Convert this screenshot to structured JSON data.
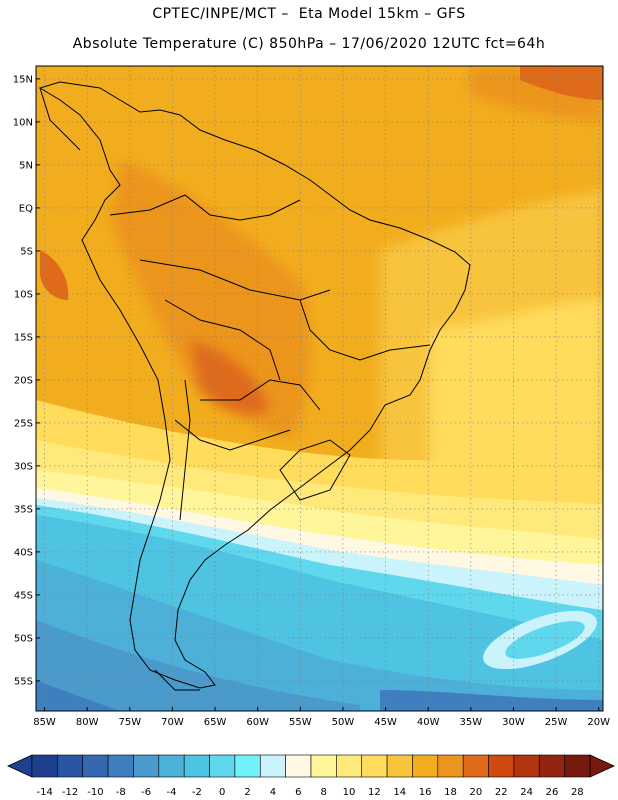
{
  "header": {
    "title_line1": "CPTEC/INPE/MCT –  Eta Model 15km – GFS",
    "title_line2": "Absolute Temperature (C) 850hPa – 17/06/2020 12UTC fct=64h"
  },
  "map": {
    "lat_labels": [
      "15N",
      "10N",
      "5N",
      "EQ",
      "5S",
      "10S",
      "15S",
      "20S",
      "25S",
      "30S",
      "35S",
      "40S",
      "45S",
      "50S",
      "55S"
    ],
    "lon_labels": [
      "85W",
      "80W",
      "75W",
      "70W",
      "65W",
      "60W",
      "55W",
      "50W",
      "45W",
      "40W",
      "35W",
      "30W",
      "25W",
      "20W"
    ],
    "extent": {
      "lon_min": -86,
      "lon_max": -19.5,
      "lat_min": -58.5,
      "lat_max": 16.5
    }
  },
  "legend": {
    "ticks": [
      "-14",
      "-12",
      "-10",
      "-8",
      "-6",
      "-4",
      "-2",
      "0",
      "2",
      "4",
      "6",
      "8",
      "10",
      "12",
      "14",
      "16",
      "18",
      "20",
      "22",
      "24",
      "26",
      "28"
    ],
    "colors": [
      "#1f3f8f",
      "#2a55a3",
      "#3469b2",
      "#3f7fc0",
      "#4a9bcc",
      "#4cb0d8",
      "#4fc3e2",
      "#5fd8ee",
      "#6ff2f8",
      "#cbf3fb",
      "#fff8e2",
      "#fff59a",
      "#ffe97a",
      "#ffdc5c",
      "#f8c43c",
      "#f2ad1e",
      "#ec951e",
      "#de6a1a",
      "#ce4a12",
      "#b23410",
      "#922410",
      "#761a10"
    ]
  }
}
